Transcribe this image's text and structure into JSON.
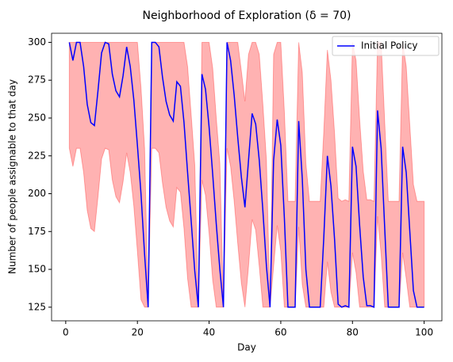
{
  "chart_data": {
    "type": "line",
    "title": "Neighborhood of Exploration (δ = 70)",
    "x_label": "Day",
    "y_label": "Number of people assignable to that day",
    "x": [
      1,
      2,
      3,
      4,
      5,
      6,
      7,
      8,
      9,
      10,
      11,
      12,
      13,
      14,
      15,
      16,
      17,
      18,
      19,
      20,
      21,
      22,
      23,
      24,
      25,
      26,
      27,
      28,
      29,
      30,
      31,
      32,
      33,
      34,
      35,
      36,
      37,
      38,
      39,
      40,
      41,
      42,
      43,
      44,
      45,
      46,
      47,
      48,
      49,
      50,
      51,
      52,
      53,
      54,
      55,
      56,
      57,
      58,
      59,
      60,
      61,
      62,
      63,
      64,
      65,
      66,
      67,
      68,
      69,
      70,
      71,
      72,
      73,
      74,
      75,
      76,
      77,
      78,
      79,
      80,
      81,
      82,
      83,
      84,
      85,
      86,
      87,
      88,
      89,
      90,
      91,
      92,
      93,
      94,
      95,
      96,
      97,
      98,
      99,
      100
    ],
    "series": [
      {
        "name": "Initial Policy",
        "color": "#0000ff",
        "values": [
          300,
          288,
          300,
          300,
          284,
          259,
          247,
          245,
          268,
          293,
          300,
          299,
          279,
          268,
          264,
          278,
          297,
          284,
          262,
          232,
          200,
          160,
          125,
          300,
          300,
          297,
          277,
          261,
          252,
          248,
          274,
          271,
          247,
          214,
          182,
          149,
          125,
          279,
          269,
          244,
          213,
          180,
          150,
          125,
          300,
          288,
          265,
          237,
          211,
          191,
          222,
          253,
          246,
          222,
          189,
          152,
          125,
          222,
          249,
          232,
          184,
          125,
          125,
          125,
          248,
          210,
          150,
          125,
          125,
          125,
          125,
          171,
          225,
          205,
          170,
          127,
          125,
          126,
          125,
          231,
          218,
          179,
          145,
          126,
          126,
          125,
          255,
          230,
          177,
          125,
          125,
          125,
          125,
          231,
          214,
          175,
          136,
          125,
          125,
          125
        ]
      }
    ],
    "band": {
      "color": "#ff0000",
      "upper": [
        300,
        300,
        300,
        300,
        300,
        300,
        300,
        300,
        300,
        300,
        300,
        300,
        300,
        300,
        300,
        300,
        300,
        300,
        300,
        300,
        270,
        230,
        125,
        300,
        300,
        300,
        300,
        300,
        300,
        300,
        300,
        300,
        300,
        284,
        252,
        219,
        125,
        300,
        300,
        300,
        283,
        250,
        220,
        125,
        300,
        300,
        300,
        300,
        281,
        261,
        292,
        300,
        300,
        292,
        259,
        222,
        125,
        292,
        300,
        300,
        254,
        195,
        195,
        195,
        300,
        280,
        220,
        195,
        195,
        195,
        195,
        241,
        295,
        275,
        240,
        197,
        195,
        196,
        195,
        300,
        288,
        249,
        215,
        196,
        196,
        195,
        300,
        300,
        247,
        195,
        195,
        195,
        195,
        300,
        284,
        245,
        206,
        195,
        195,
        195
      ],
      "lower": [
        230,
        218,
        230,
        230,
        214,
        189,
        177,
        175,
        198,
        223,
        230,
        229,
        209,
        198,
        194,
        208,
        227,
        214,
        192,
        162,
        130,
        125,
        125,
        230,
        230,
        227,
        207,
        191,
        182,
        178,
        204,
        201,
        177,
        144,
        125,
        125,
        125,
        209,
        199,
        174,
        143,
        125,
        125,
        125,
        230,
        218,
        195,
        167,
        141,
        125,
        152,
        183,
        176,
        152,
        125,
        125,
        125,
        152,
        179,
        162,
        125,
        125,
        125,
        125,
        178,
        140,
        125,
        125,
        125,
        125,
        125,
        125,
        155,
        135,
        125,
        125,
        125,
        125,
        125,
        161,
        148,
        125,
        125,
        125,
        125,
        125,
        185,
        160,
        125,
        125,
        125,
        125,
        125,
        161,
        144,
        125,
        125,
        125,
        125,
        125
      ]
    },
    "xlim": [
      -3.95,
      104.95
    ],
    "xticks": [
      0,
      20,
      40,
      60,
      80,
      100
    ],
    "ylim": [
      116,
      306
    ],
    "yticks": [
      125,
      150,
      175,
      200,
      225,
      250,
      275,
      300
    ],
    "legend": "upper right"
  }
}
